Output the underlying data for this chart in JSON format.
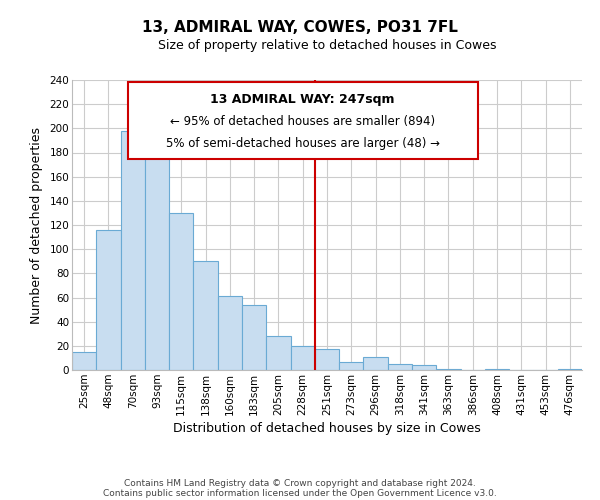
{
  "title": "13, ADMIRAL WAY, COWES, PO31 7FL",
  "subtitle": "Size of property relative to detached houses in Cowes",
  "xlabel": "Distribution of detached houses by size in Cowes",
  "ylabel": "Number of detached properties",
  "bin_labels": [
    "25sqm",
    "48sqm",
    "70sqm",
    "93sqm",
    "115sqm",
    "138sqm",
    "160sqm",
    "183sqm",
    "205sqm",
    "228sqm",
    "251sqm",
    "273sqm",
    "296sqm",
    "318sqm",
    "341sqm",
    "363sqm",
    "386sqm",
    "408sqm",
    "431sqm",
    "453sqm",
    "476sqm"
  ],
  "bar_heights": [
    15,
    116,
    198,
    191,
    130,
    90,
    61,
    54,
    28,
    20,
    17,
    7,
    11,
    5,
    4,
    1,
    0,
    1,
    0,
    0,
    1
  ],
  "bar_color": "#c8ddf0",
  "bar_edge_color": "#6aaad4",
  "vline_x_index": 10,
  "vline_color": "#cc0000",
  "ylim": [
    0,
    240
  ],
  "yticks": [
    0,
    20,
    40,
    60,
    80,
    100,
    120,
    140,
    160,
    180,
    200,
    220,
    240
  ],
  "annotation_title": "13 ADMIRAL WAY: 247sqm",
  "annotation_line1": "← 95% of detached houses are smaller (894)",
  "annotation_line2": "5% of semi-detached houses are larger (48) →",
  "annotation_box_color": "#ffffff",
  "annotation_box_edge": "#cc0000",
  "footer1": "Contains HM Land Registry data © Crown copyright and database right 2024.",
  "footer2": "Contains public sector information licensed under the Open Government Licence v3.0.",
  "background_color": "#ffffff",
  "grid_color": "#cccccc",
  "title_fontsize": 11,
  "subtitle_fontsize": 9,
  "xlabel_fontsize": 9,
  "ylabel_fontsize": 9,
  "tick_fontsize": 7.5,
  "footer_fontsize": 6.5
}
